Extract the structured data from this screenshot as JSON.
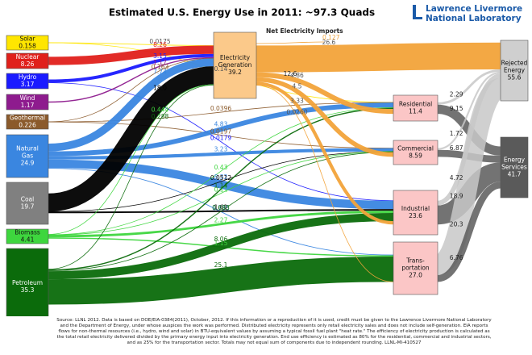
{
  "chart_data": {
    "type": "sankey",
    "title": "Estimated U.S. Energy Use in 2011: ~97.3 Quads",
    "logo": [
      "Lawrence Livermore",
      "National Laboratory"
    ],
    "nodes": [
      {
        "label": "Solar",
        "value": 0.158,
        "color": "#ffe600"
      },
      {
        "label": "Nuclear",
        "value": 8.26,
        "color": "#e0201b"
      },
      {
        "label": "Hydro",
        "value": 3.17,
        "color": "#1a1aff"
      },
      {
        "label": "Wind",
        "value": 1.17,
        "color": "#8e1b8e"
      },
      {
        "label": "Geothermal",
        "value": 0.226,
        "color": "#8b5a2b"
      },
      {
        "label": "Natural Gas",
        "value": 24.9,
        "color": "#3a86e0"
      },
      {
        "label": "Coal",
        "value": 19.7,
        "color": "#808080",
        "flow_color": "#000000"
      },
      {
        "label": "Biomass",
        "value": 4.41,
        "color": "#3ed63e"
      },
      {
        "label": "Petroleum",
        "value": 35.3,
        "color": "#0b6b0b"
      },
      {
        "label": "Electricity Generation",
        "value": 39.2,
        "color": "#fbc98a",
        "flow_color": "#f2a33a",
        "delivered": 12.6
      },
      {
        "label": "Net Electricity Imports",
        "value": 0.127,
        "color": "#f2a33a"
      },
      {
        "label": "Residential",
        "value": 11.4,
        "color": "#fbc6c6"
      },
      {
        "label": "Commercial",
        "value": 8.59,
        "color": "#fbc6c6"
      },
      {
        "label": "Industrial",
        "value": 23.6,
        "color": "#fbc6c6"
      },
      {
        "label": "Trans- portation",
        "value": 27.0,
        "value_label": "27.0",
        "color": "#fbc6c6"
      },
      {
        "label": "Rejected Energy",
        "value": 55.6,
        "color": "#cfcfcf",
        "flow_color": "#c8c8c8"
      },
      {
        "label": "Energy Services",
        "value": 41.7,
        "color": "#5a5a5a",
        "flow_color": "#5a5a5a"
      }
    ],
    "links": [
      {
        "from": "Solar",
        "to": "Electricity Generation",
        "value": 0.0175
      },
      {
        "from": "Solar",
        "to": "Residential",
        "value": 0.14
      },
      {
        "from": "Nuclear",
        "to": "Electricity Generation",
        "value": 8.26
      },
      {
        "from": "Hydro",
        "to": "Electricity Generation",
        "value": 3.15
      },
      {
        "from": "Hydro",
        "to": "Industrial",
        "value": 0.0179
      },
      {
        "from": "Wind",
        "to": "Electricity Generation",
        "value": 1.17
      },
      {
        "from": "Geothermal",
        "to": "Electricity Generation",
        "value": 0.163
      },
      {
        "from": "Geothermal",
        "to": "Residential",
        "value": 0.0396
      },
      {
        "from": "Geothermal",
        "to": "Commercial",
        "value": 0.0197
      },
      {
        "from": "Natural Gas",
        "to": "Electricity Generation",
        "value": 7.74
      },
      {
        "from": "Natural Gas",
        "to": "Residential",
        "value": 4.83
      },
      {
        "from": "Natural Gas",
        "to": "Commercial",
        "value": 3.23
      },
      {
        "from": "Natural Gas",
        "to": "Industrial",
        "value": 8.32
      },
      {
        "from": "Natural Gas",
        "to": "Trans- portation",
        "value": 0.735
      },
      {
        "from": "Coal",
        "to": "Electricity Generation",
        "value": 18.0,
        "value_label": "18.0"
      },
      {
        "from": "Coal",
        "to": "Commercial",
        "value": 0.0512
      },
      {
        "from": "Coal",
        "to": "Industrial",
        "value": 1.61
      },
      {
        "from": "Biomass",
        "to": "Electricity Generation",
        "value": 0.444
      },
      {
        "from": "Biomass",
        "to": "Residential",
        "value": 0.43
      },
      {
        "from": "Biomass",
        "to": "Commercial",
        "value": 0.11
      },
      {
        "from": "Biomass",
        "to": "Industrial",
        "value": 2.27
      },
      {
        "from": "Biomass",
        "to": "Trans- portation",
        "value": 1.15
      },
      {
        "from": "Petroleum",
        "to": "Electricity Generation",
        "value": 0.288
      },
      {
        "from": "Petroleum",
        "to": "Residential",
        "value": 1.14
      },
      {
        "from": "Petroleum",
        "to": "Commercial",
        "value": 0.683
      },
      {
        "from": "Petroleum",
        "to": "Industrial",
        "value": 8.06
      },
      {
        "from": "Petroleum",
        "to": "Trans- portation",
        "value": 25.1
      },
      {
        "from": "Electricity Generation",
        "to": "Rejected Energy",
        "value": 26.6
      },
      {
        "from": "Electricity Generation",
        "to": "Residential",
        "value": 4.86
      },
      {
        "from": "Electricity Generation",
        "to": "Commercial",
        "value": 4.5
      },
      {
        "from": "Electricity Generation",
        "to": "Industrial",
        "value": 3.33
      },
      {
        "from": "Electricity Generation",
        "to": "Trans- portation",
        "value": 0.026,
        "value_label": "0.0260"
      },
      {
        "from": "Residential",
        "to": "Rejected Energy",
        "value": 2.29
      },
      {
        "from": "Residential",
        "to": "Energy Services",
        "value": 9.15
      },
      {
        "from": "Commercial",
        "to": "Rejected Energy",
        "value": 1.72
      },
      {
        "from": "Commercial",
        "to": "Energy Services",
        "value": 6.87
      },
      {
        "from": "Industrial",
        "to": "Rejected Energy",
        "value": 4.72
      },
      {
        "from": "Industrial",
        "to": "Energy Services",
        "value": 18.9
      },
      {
        "from": "Trans- portation",
        "to": "Rejected Energy",
        "value": 20.3
      },
      {
        "from": "Trans- portation",
        "to": "Energy Services",
        "value": 6.76
      }
    ],
    "note": "Source: LLNL 2012. Data is based on DOE/EIA-0384(2011), October, 2012. If this information or a reproduction of it is used, credit must be given to the Lawrence Livermore National Laboratory and the Department of Energy, under whose auspices the work was performed. Distributed electricity represents only retail electricity sales and does not include self-generation. EIA reports flows for non-thermal resources (i.e., hydro, wind and solar) in BTU-equivalent values by assuming a typical fossil fuel plant \"heat rate.\" The efficiency of electricity production is calculated as the total retail electricity delivered divided by the primary energy input into electricity generation. End use efficiency is estimated as 80% for the residential, commercial and industrial sectors, and as 25% for the transportation sector. Totals may not equal sum of components due to independent rounding. LLNL-MI-410527"
  }
}
